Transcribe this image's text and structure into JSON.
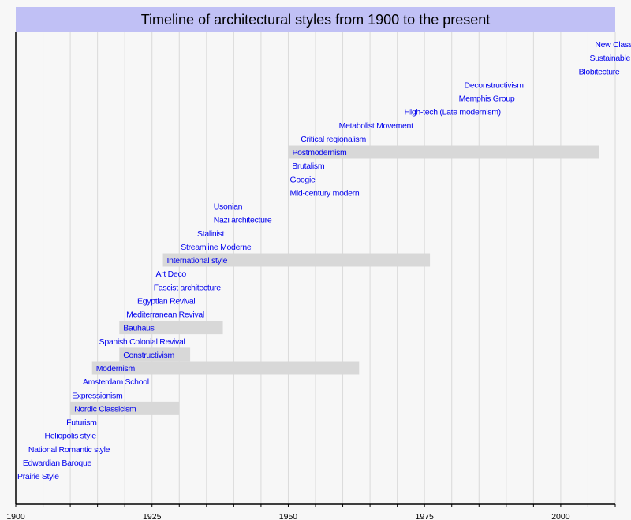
{
  "chart_data": {
    "type": "timeline",
    "title": "Timeline of architectural styles from 1900 to the present",
    "xlim": [
      1900,
      2010
    ],
    "xticks": [
      1900,
      1925,
      1950,
      1975,
      2000
    ],
    "minor_grid_step": 5,
    "grid": true,
    "colors": {
      "title_band": "#c0c0f5",
      "label": "#0000ee",
      "bar": "#d8d8d8",
      "grid": "#dadada",
      "background": "#f7f7f7"
    },
    "items": [
      {
        "label": "Prairie Style",
        "start": 1900
      },
      {
        "label": "Edwardian Baroque",
        "start": 1901
      },
      {
        "label": "National Romantic style",
        "start": 1902
      },
      {
        "label": "Heliopolis style",
        "start": 1905
      },
      {
        "label": "Futurism",
        "start": 1909
      },
      {
        "label": "Nordic Classicism",
        "start": 1910,
        "end": 1930
      },
      {
        "label": "Expressionism",
        "start": 1910
      },
      {
        "label": "Amsterdam School",
        "start": 1912
      },
      {
        "label": "Modernism",
        "start": 1914,
        "end": 1963
      },
      {
        "label": "Constructivism",
        "start": 1919,
        "end": 1932
      },
      {
        "label": "Spanish Colonial Revival",
        "start": 1915
      },
      {
        "label": "Bauhaus",
        "start": 1919,
        "end": 1938
      },
      {
        "label": "Mediterranean Revival",
        "start": 1920
      },
      {
        "label": "Egyptian Revival",
        "start": 1922
      },
      {
        "label": "Fascist architecture",
        "start": 1925
      },
      {
        "label": "Art Deco",
        "start": 1925.4
      },
      {
        "label": "International style",
        "start": 1927,
        "end": 1976
      },
      {
        "label": "Streamline Moderne",
        "start": 1930
      },
      {
        "label": "Stalinist",
        "start": 1933
      },
      {
        "label": "Nazi architecture",
        "start": 1936
      },
      {
        "label": "Usonian",
        "start": 1936
      },
      {
        "label": "Mid-century modern",
        "start": 1950
      },
      {
        "label": "Googie",
        "start": 1950
      },
      {
        "label": "Brutalism",
        "start": 1950.4
      },
      {
        "label": "Postmodernism",
        "start": 1950,
        "end": 2007
      },
      {
        "label": "Critical regionalism",
        "start": 1952
      },
      {
        "label": "Metabolist Movement",
        "start": 1959
      },
      {
        "label": "High-tech (Late modernism)",
        "start": 1971
      },
      {
        "label": "Memphis Group",
        "start": 1981
      },
      {
        "label": "Deconstructivism",
        "start": 1982
      },
      {
        "label": "Blobitecture",
        "start": 2003
      },
      {
        "label": "Sustainable",
        "start": 2005
      },
      {
        "label": "New Class",
        "start": 2006
      }
    ]
  }
}
